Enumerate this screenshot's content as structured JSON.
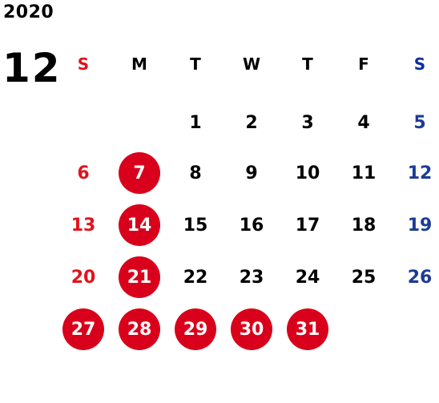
{
  "year": "2020",
  "month": "12",
  "weekday_headers": [
    "S",
    "M",
    "T",
    "W",
    "T",
    "F",
    "S"
  ],
  "weeks": [
    [
      "",
      "",
      "1",
      "2",
      "3",
      "4",
      "5"
    ],
    [
      "6",
      "7",
      "8",
      "9",
      "10",
      "11",
      "12"
    ],
    [
      "13",
      "14",
      "15",
      "16",
      "17",
      "18",
      "19"
    ],
    [
      "20",
      "21",
      "22",
      "23",
      "24",
      "25",
      "26"
    ],
    [
      "27",
      "28",
      "29",
      "30",
      "31",
      "",
      ""
    ]
  ],
  "highlighted_days": [
    "7",
    "14",
    "21",
    "27",
    "28",
    "29",
    "30",
    "31"
  ],
  "colors": {
    "sunday": "#e3121b",
    "saturday": "#1b3b94",
    "highlight": "#d9001b",
    "text": "#000000"
  }
}
